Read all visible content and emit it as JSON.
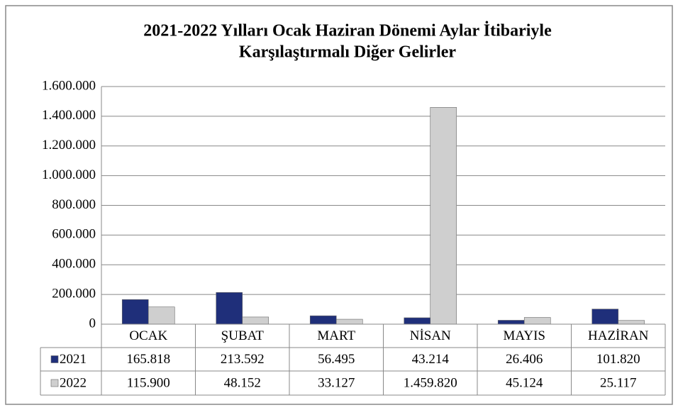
{
  "chart_data": {
    "type": "bar",
    "title": [
      "2021-2022 Yılları Ocak Haziran Dönemi Aylar İtibariyle",
      "Karşılaştırmalı Diğer Gelirler"
    ],
    "categories": [
      "OCAK",
      "ŞUBAT",
      "MART",
      "NİSAN",
      "MAYIS",
      "HAZİRAN"
    ],
    "series": [
      {
        "name": "2021",
        "color": "#1f2f7a",
        "values": [
          165818,
          213592,
          56495,
          43214,
          26406,
          101820
        ],
        "value_labels": [
          "165.818",
          "213.592",
          "56.495",
          "43.214",
          "26.406",
          "101.820"
        ]
      },
      {
        "name": "2022",
        "color": "#cfcfcf",
        "values": [
          115900,
          48152,
          33127,
          1459820,
          45124,
          25117
        ],
        "value_labels": [
          "115.900",
          "48.152",
          "33.127",
          "1.459.820",
          "45.124",
          "25.117"
        ]
      }
    ],
    "ylim": [
      0,
      1600000
    ],
    "yticks": [
      0,
      {
        "value": 200000,
        "label": "200.000"
      },
      {
        "value": 400000,
        "label": "400.000"
      },
      {
        "value": 600000,
        "label": "600.000"
      },
      {
        "value": 800000,
        "label": "800.000"
      },
      {
        "value": 1000000,
        "label": "1.000.000"
      },
      {
        "value": 1200000,
        "label": "1.200.000"
      },
      {
        "value": 1400000,
        "label": "1.400.000"
      },
      {
        "value": 1600000,
        "label": "1.600.000"
      }
    ],
    "grid": true
  }
}
